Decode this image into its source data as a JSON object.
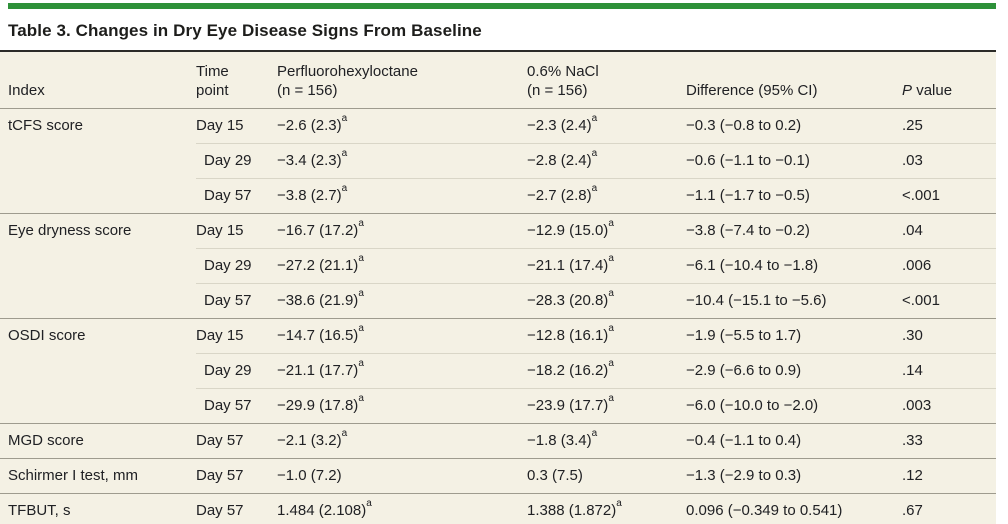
{
  "colors": {
    "accent": "#2e9139",
    "table-bg": "#f4f1e4",
    "rule-dark": "#2b2b28",
    "rule-medium": "#9e9b8e",
    "rule-light": "#d9d6c7",
    "text": "#202124"
  },
  "title": "Table 3. Changes in Dry Eye Disease Signs From Baseline",
  "header": {
    "index": "Index",
    "time": "Time\npoint",
    "pfho": "Perfluorohexyloctane\n(n = 156)",
    "nacl": "0.6% NaCl\n(n = 156)",
    "diff": "Difference (95% CI)",
    "p_italic": "P",
    "p_rest": "value"
  },
  "groups": [
    {
      "index": "tCFS score",
      "rows": [
        {
          "time": "Day 15",
          "pfho": {
            "v": "−2.6 (2.3)",
            "sup": "a"
          },
          "nacl": {
            "v": "−2.3 (2.4)",
            "sup": "a"
          },
          "diff": "−0.3 (−0.8 to 0.2)",
          "p": ".25"
        },
        {
          "time": "Day 29",
          "pfho": {
            "v": "−3.4 (2.3)",
            "sup": "a"
          },
          "nacl": {
            "v": "−2.8 (2.4)",
            "sup": "a"
          },
          "diff": "−0.6 (−1.1 to −0.1)",
          "p": ".03"
        },
        {
          "time": "Day 57",
          "pfho": {
            "v": "−3.8 (2.7)",
            "sup": "a"
          },
          "nacl": {
            "v": "−2.7 (2.8)",
            "sup": "a"
          },
          "diff": "−1.1 (−1.7 to −0.5)",
          "p": "<.001"
        }
      ]
    },
    {
      "index": "Eye dryness score",
      "rows": [
        {
          "time": "Day 15",
          "pfho": {
            "v": "−16.7 (17.2)",
            "sup": "a"
          },
          "nacl": {
            "v": "−12.9 (15.0)",
            "sup": "a"
          },
          "diff": "−3.8 (−7.4 to −0.2)",
          "p": ".04"
        },
        {
          "time": "Day 29",
          "pfho": {
            "v": "−27.2 (21.1)",
            "sup": "a"
          },
          "nacl": {
            "v": "−21.1 (17.4)",
            "sup": "a"
          },
          "diff": "−6.1 (−10.4 to −1.8)",
          "p": ".006"
        },
        {
          "time": "Day 57",
          "pfho": {
            "v": "−38.6 (21.9)",
            "sup": "a"
          },
          "nacl": {
            "v": "−28.3 (20.8)",
            "sup": "a"
          },
          "diff": "−10.4 (−15.1 to −5.6)",
          "p": "<.001"
        }
      ]
    },
    {
      "index": "OSDI score",
      "rows": [
        {
          "time": "Day 15",
          "pfho": {
            "v": "−14.7 (16.5)",
            "sup": "a"
          },
          "nacl": {
            "v": "−12.8 (16.1)",
            "sup": "a"
          },
          "diff": "−1.9 (−5.5 to 1.7)",
          "p": ".30"
        },
        {
          "time": "Day 29",
          "pfho": {
            "v": "−21.1 (17.7)",
            "sup": "a"
          },
          "nacl": {
            "v": "−18.2 (16.2)",
            "sup": "a"
          },
          "diff": "−2.9 (−6.6 to 0.9)",
          "p": ".14"
        },
        {
          "time": "Day 57",
          "pfho": {
            "v": "−29.9 (17.8)",
            "sup": "a"
          },
          "nacl": {
            "v": "−23.9 (17.7)",
            "sup": "a"
          },
          "diff": "−6.0 (−10.0 to −2.0)",
          "p": ".003"
        }
      ]
    },
    {
      "index": "MGD score",
      "rows": [
        {
          "time": "Day 57",
          "pfho": {
            "v": "−2.1 (3.2)",
            "sup": "a"
          },
          "nacl": {
            "v": "−1.8 (3.4)",
            "sup": "a"
          },
          "diff": "−0.4 (−1.1 to 0.4)",
          "p": ".33"
        }
      ]
    },
    {
      "index": "Schirmer I test, mm",
      "rows": [
        {
          "time": "Day 57",
          "pfho": {
            "v": "−1.0 (7.2)"
          },
          "nacl": {
            "v": "0.3 (7.5)"
          },
          "diff": "−1.3 (−2.9 to 0.3)",
          "p": ".12"
        }
      ]
    },
    {
      "index": "TFBUT, s",
      "rows": [
        {
          "time": "Day 57",
          "pfho": {
            "v": "1.484 (2.108)",
            "sup": "a"
          },
          "nacl": {
            "v": "1.388 (1.872)",
            "sup": "a"
          },
          "diff": "0.096 (−0.349 to 0.541)",
          "p": ".67"
        }
      ]
    }
  ]
}
